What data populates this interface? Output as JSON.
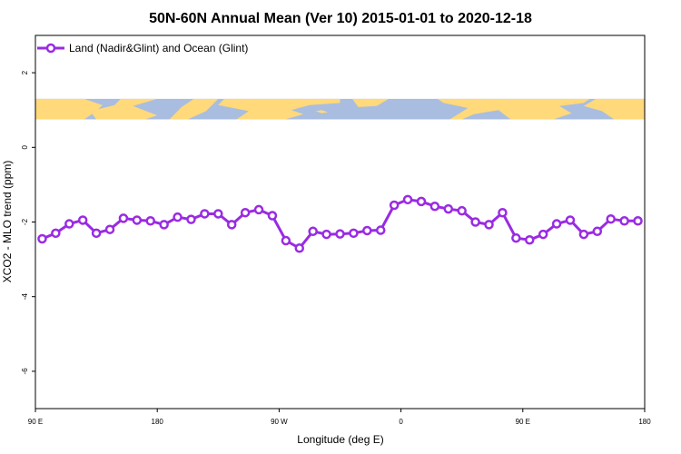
{
  "chart_data": {
    "type": "line",
    "title": "50N-60N Annual Mean (Ver 10)   2015-01-01 to 2020-12-18",
    "xlabel": "Longitude (deg E)",
    "ylabel": "XCO2 - MLO trend (ppm)",
    "xlim": [
      -90,
      180
    ],
    "ylim": [
      -7,
      3
    ],
    "x_ticks": [
      {
        "value": -90,
        "label": "90 E"
      },
      {
        "value": -36,
        "label": "180"
      },
      {
        "value": 18,
        "label": "90 W"
      },
      {
        "value": 72,
        "label": "0"
      },
      {
        "value": 126,
        "label": "90 E"
      },
      {
        "value": 180,
        "label": "180"
      }
    ],
    "y_ticks": [
      {
        "value": 2,
        "label": "2"
      },
      {
        "value": 0,
        "label": "0"
      },
      {
        "value": -2,
        "label": "-2"
      },
      {
        "value": -4,
        "label": "-4"
      },
      {
        "value": -6,
        "label": "-6"
      }
    ],
    "legend_position": "top-left",
    "map_band_ylim": [
      0.75,
      1.3
    ],
    "map_colors": {
      "ocean": "#a8bde0",
      "land": "#ffd97a"
    },
    "series": [
      {
        "name": "Land (Nadir&Glint) and Ocean (Glint)",
        "color": "#9a2be2",
        "x": [
          -87,
          -81,
          -75,
          -69,
          -63,
          -57,
          -51,
          -45,
          -39,
          -33,
          -27,
          -21,
          -15,
          -9,
          -3,
          3,
          9,
          15,
          21,
          27,
          33,
          39,
          45,
          51,
          57,
          63,
          69,
          75,
          81,
          87,
          93,
          99,
          105,
          111,
          117,
          123,
          129,
          135,
          141,
          147,
          153,
          159,
          165,
          171,
          177
        ],
        "values": [
          -2.45,
          -2.3,
          -2.05,
          -1.95,
          -2.3,
          -2.2,
          -1.9,
          -1.95,
          -1.97,
          -2.07,
          -1.87,
          -1.93,
          -1.78,
          -1.78,
          -2.07,
          -1.75,
          -1.67,
          -1.83,
          -2.5,
          -2.7,
          -2.25,
          -2.33,
          -2.32,
          -2.3,
          -2.23,
          -2.22,
          -1.55,
          -1.4,
          -1.45,
          -1.58,
          -1.65,
          -1.7,
          -2.0,
          -2.07,
          -1.75,
          -2.43,
          -2.48,
          -2.33,
          -2.05,
          -1.95,
          -2.33,
          -2.25,
          -1.92,
          -1.97,
          -1.97
        ]
      }
    ]
  }
}
